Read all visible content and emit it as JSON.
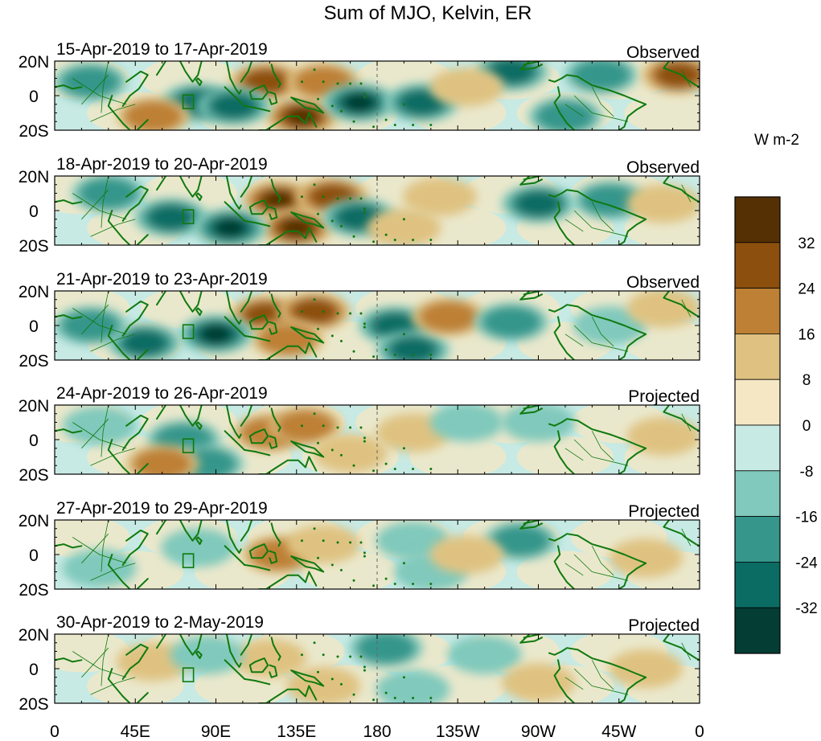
{
  "figure": {
    "title": "Sum of MJO, Kelvin, ER",
    "colorbar_units": "W m-2"
  },
  "chart_data": {
    "type": "heatmap",
    "title": "Sum of MJO, Kelvin, ER",
    "units": "W m-2",
    "lat_range": [
      -20,
      20
    ],
    "lon_range": [
      0,
      360
    ],
    "y_tick_labels": [
      "20N",
      "0",
      "20S"
    ],
    "x_tick_labels": [
      "0",
      "45E",
      "90E",
      "135E",
      "180",
      "135W",
      "90W",
      "45W",
      "0"
    ],
    "grid": false,
    "colorbar": {
      "levels": [
        -40,
        -32,
        -24,
        -16,
        -8,
        0,
        8,
        16,
        24,
        32,
        40
      ],
      "labels": [
        "-32",
        "-24",
        "-16",
        "-8",
        "0",
        "8",
        "16",
        "24",
        "32"
      ],
      "colors": [
        "#033d33",
        "#0b6c63",
        "#36968b",
        "#80c9bc",
        "#c8eae4",
        "#f5e7c4",
        "#dfc281",
        "#bd8034",
        "#8c4f0d",
        "#553005"
      ],
      "position": "right"
    },
    "panels": [
      {
        "date_range": "15-Apr-2019 to 17-Apr-2019",
        "status": "Observed",
        "blobs": [
          {
            "lon": 118,
            "lat": 8,
            "value": 28
          },
          {
            "lon": 138,
            "lat": -12,
            "value": 32
          },
          {
            "lon": 150,
            "lat": 8,
            "value": 16
          },
          {
            "lon": 170,
            "lat": -4,
            "value": -36
          },
          {
            "lon": 205,
            "lat": -4,
            "value": -24
          },
          {
            "lon": 80,
            "lat": -4,
            "value": -30
          },
          {
            "lon": 100,
            "lat": -6,
            "value": -24
          },
          {
            "lon": 20,
            "lat": 8,
            "value": -16
          },
          {
            "lon": 255,
            "lat": 14,
            "value": -24
          },
          {
            "lon": 305,
            "lat": 12,
            "value": -16
          },
          {
            "lon": 348,
            "lat": 12,
            "value": 24
          },
          {
            "lon": 285,
            "lat": -12,
            "value": -16
          },
          {
            "lon": 55,
            "lat": -12,
            "value": 16
          },
          {
            "lon": 230,
            "lat": 5,
            "value": 12
          }
        ]
      },
      {
        "date_range": "18-Apr-2019 to 20-Apr-2019",
        "status": "Observed",
        "blobs": [
          {
            "lon": 125,
            "lat": 6,
            "value": 32
          },
          {
            "lon": 135,
            "lat": -10,
            "value": 36
          },
          {
            "lon": 155,
            "lat": 8,
            "value": 30
          },
          {
            "lon": 65,
            "lat": -4,
            "value": -30
          },
          {
            "lon": 98,
            "lat": -10,
            "value": -34
          },
          {
            "lon": 170,
            "lat": -4,
            "value": -28
          },
          {
            "lon": 30,
            "lat": 10,
            "value": -16
          },
          {
            "lon": 270,
            "lat": 4,
            "value": -24
          },
          {
            "lon": 310,
            "lat": 6,
            "value": -16
          },
          {
            "lon": 215,
            "lat": 8,
            "value": 12
          },
          {
            "lon": 195,
            "lat": -10,
            "value": 12
          },
          {
            "lon": 340,
            "lat": 4,
            "value": 10
          }
        ]
      },
      {
        "date_range": "21-Apr-2019 to 23-Apr-2019",
        "status": "Observed",
        "blobs": [
          {
            "lon": 118,
            "lat": 6,
            "value": 28
          },
          {
            "lon": 145,
            "lat": 8,
            "value": 30
          },
          {
            "lon": 130,
            "lat": -8,
            "value": 16
          },
          {
            "lon": 90,
            "lat": -5,
            "value": -36
          },
          {
            "lon": 50,
            "lat": -10,
            "value": -24
          },
          {
            "lon": 190,
            "lat": 0,
            "value": -24
          },
          {
            "lon": 200,
            "lat": -14,
            "value": -24
          },
          {
            "lon": 220,
            "lat": 5,
            "value": 16
          },
          {
            "lon": 255,
            "lat": 2,
            "value": -16
          },
          {
            "lon": 310,
            "lat": 0,
            "value": -12
          },
          {
            "lon": 340,
            "lat": 10,
            "value": 12
          },
          {
            "lon": 20,
            "lat": 0,
            "value": -16
          }
        ]
      },
      {
        "date_range": "24-Apr-2019 to 26-Apr-2019",
        "status": "Projected",
        "blobs": [
          {
            "lon": 120,
            "lat": 4,
            "value": 16
          },
          {
            "lon": 140,
            "lat": 8,
            "value": 18
          },
          {
            "lon": 72,
            "lat": 0,
            "value": -18
          },
          {
            "lon": 85,
            "lat": -14,
            "value": -16
          },
          {
            "lon": 60,
            "lat": -14,
            "value": 16
          },
          {
            "lon": 200,
            "lat": 4,
            "value": 8
          },
          {
            "lon": 230,
            "lat": 10,
            "value": -12
          },
          {
            "lon": 270,
            "lat": 10,
            "value": -14
          },
          {
            "lon": 340,
            "lat": 2,
            "value": 12
          },
          {
            "lon": 25,
            "lat": 8,
            "value": -12
          },
          {
            "lon": 165,
            "lat": -8,
            "value": 10
          }
        ]
      },
      {
        "date_range": "27-Apr-2019 to 29-Apr-2019",
        "status": "Projected",
        "blobs": [
          {
            "lon": 125,
            "lat": 0,
            "value": 16
          },
          {
            "lon": 150,
            "lat": 6,
            "value": 8
          },
          {
            "lon": 200,
            "lat": 8,
            "value": -14
          },
          {
            "lon": 210,
            "lat": -10,
            "value": -14
          },
          {
            "lon": 260,
            "lat": 8,
            "value": -16
          },
          {
            "lon": 330,
            "lat": -2,
            "value": 14
          },
          {
            "lon": 80,
            "lat": 4,
            "value": -8
          },
          {
            "lon": 25,
            "lat": -8,
            "value": -10
          },
          {
            "lon": 230,
            "lat": 0,
            "value": 8
          }
        ]
      },
      {
        "date_range": "30-Apr-2019 to 2-May-2019",
        "status": "Projected",
        "blobs": [
          {
            "lon": 185,
            "lat": 12,
            "value": -16
          },
          {
            "lon": 200,
            "lat": -12,
            "value": -14
          },
          {
            "lon": 150,
            "lat": -10,
            "value": 10
          },
          {
            "lon": 120,
            "lat": 6,
            "value": 8
          },
          {
            "lon": 240,
            "lat": 8,
            "value": -10
          },
          {
            "lon": 330,
            "lat": 0,
            "value": 12
          },
          {
            "lon": 55,
            "lat": 4,
            "value": 8
          },
          {
            "lon": 85,
            "lat": 8,
            "value": -8
          },
          {
            "lon": 270,
            "lat": -8,
            "value": 8
          }
        ]
      }
    ]
  }
}
